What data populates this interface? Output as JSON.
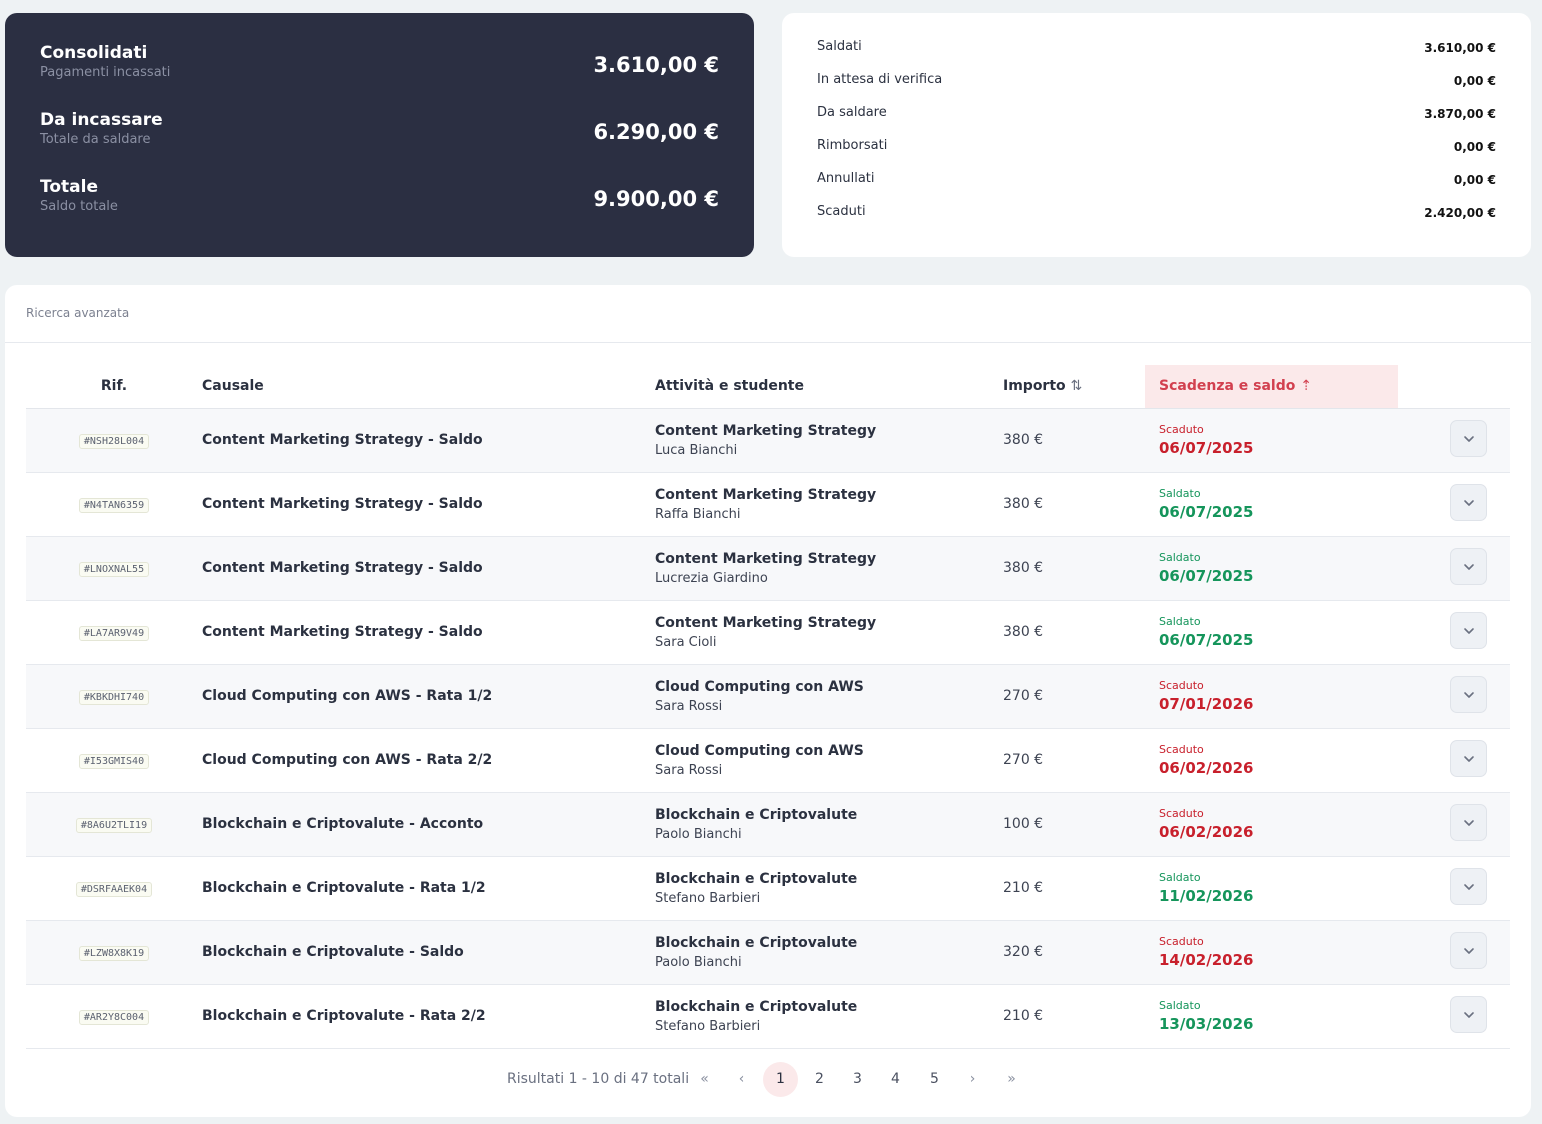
{
  "summary": {
    "rows": [
      {
        "title": "Consolidati",
        "subtitle": "Pagamenti incassati",
        "value": "3.610,00 €"
      },
      {
        "title": "Da incassare",
        "subtitle": "Totale da saldare",
        "value": "6.290,00 €"
      },
      {
        "title": "Totale",
        "subtitle": "Saldo totale",
        "value": "9.900,00 €"
      }
    ]
  },
  "breakdown": {
    "rows": [
      {
        "label": "Saldati",
        "value": "3.610,00 €"
      },
      {
        "label": "In attesa di verifica",
        "value": "0,00 €"
      },
      {
        "label": "Da saldare",
        "value": "3.870,00 €"
      },
      {
        "label": "Rimborsati",
        "value": "0,00 €"
      },
      {
        "label": "Annullati",
        "value": "0,00 €"
      },
      {
        "label": "Scaduti",
        "value": "2.420,00 €"
      }
    ]
  },
  "search": {
    "advanced_label": "Ricerca avanzata"
  },
  "table": {
    "headers": {
      "rif": "Rif.",
      "causale": "Causale",
      "attivita": "Attività e studente",
      "importo": "Importo",
      "scadenza": "Scadenza e saldo"
    },
    "sort_icons": {
      "importo": "⇅",
      "scadenza": "⇡"
    },
    "rows": [
      {
        "ref": "#NSH28L004",
        "causale": "Content Marketing Strategy - Saldo",
        "activity": "Content Marketing Strategy",
        "student": "Luca Bianchi",
        "amount": "380 €",
        "status": "Scaduto",
        "date": "06/07/2025",
        "status_type": "overdue"
      },
      {
        "ref": "#N4TAN6359",
        "causale": "Content Marketing Strategy - Saldo",
        "activity": "Content Marketing Strategy",
        "student": "Raffa Bianchi",
        "amount": "380 €",
        "status": "Saldato",
        "date": "06/07/2025",
        "status_type": "paid"
      },
      {
        "ref": "#LNOXNAL55",
        "causale": "Content Marketing Strategy - Saldo",
        "activity": "Content Marketing Strategy",
        "student": "Lucrezia Giardino",
        "amount": "380 €",
        "status": "Saldato",
        "date": "06/07/2025",
        "status_type": "paid"
      },
      {
        "ref": "#LA7AR9V49",
        "causale": "Content Marketing Strategy - Saldo",
        "activity": "Content Marketing Strategy",
        "student": "Sara Cioli",
        "amount": "380 €",
        "status": "Saldato",
        "date": "06/07/2025",
        "status_type": "paid"
      },
      {
        "ref": "#KBKDHI740",
        "causale": "Cloud Computing con AWS - Rata 1/2",
        "activity": "Cloud Computing con AWS",
        "student": "Sara Rossi",
        "amount": "270 €",
        "status": "Scaduto",
        "date": "07/01/2026",
        "status_type": "overdue"
      },
      {
        "ref": "#I53GMIS40",
        "causale": "Cloud Computing con AWS - Rata 2/2",
        "activity": "Cloud Computing con AWS",
        "student": "Sara Rossi",
        "amount": "270 €",
        "status": "Scaduto",
        "date": "06/02/2026",
        "status_type": "overdue"
      },
      {
        "ref": "#8A6U2TLI19",
        "causale": "Blockchain e Criptovalute - Acconto",
        "activity": "Blockchain e Criptovalute",
        "student": "Paolo Bianchi",
        "amount": "100 €",
        "status": "Scaduto",
        "date": "06/02/2026",
        "status_type": "overdue"
      },
      {
        "ref": "#DSRFAAEK04",
        "causale": "Blockchain e Criptovalute - Rata 1/2",
        "activity": "Blockchain e Criptovalute",
        "student": "Stefano Barbieri",
        "amount": "210 €",
        "status": "Saldato",
        "date": "11/02/2026",
        "status_type": "paid"
      },
      {
        "ref": "#LZW8X8K19",
        "causale": "Blockchain e Criptovalute - Saldo",
        "activity": "Blockchain e Criptovalute",
        "student": "Paolo Bianchi",
        "amount": "320 €",
        "status": "Scaduto",
        "date": "14/02/2026",
        "status_type": "overdue"
      },
      {
        "ref": "#AR2Y8C004",
        "causale": "Blockchain e Criptovalute - Rata 2/2",
        "activity": "Blockchain e Criptovalute",
        "student": "Stefano Barbieri",
        "amount": "210 €",
        "status": "Saldato",
        "date": "13/03/2026",
        "status_type": "paid"
      }
    ]
  },
  "colors": {
    "overdue": "#c8202c",
    "paid": "#15955b",
    "dark_card": "#2b2f42",
    "active_sort_bg": "#fbe9ea"
  },
  "pagination": {
    "results_text": "Risultati 1 - 10 di 47 totali",
    "first": "«",
    "prev": "‹",
    "pages": [
      "1",
      "2",
      "3",
      "4",
      "5"
    ],
    "current_page": "1",
    "next": "›",
    "last": "»"
  }
}
